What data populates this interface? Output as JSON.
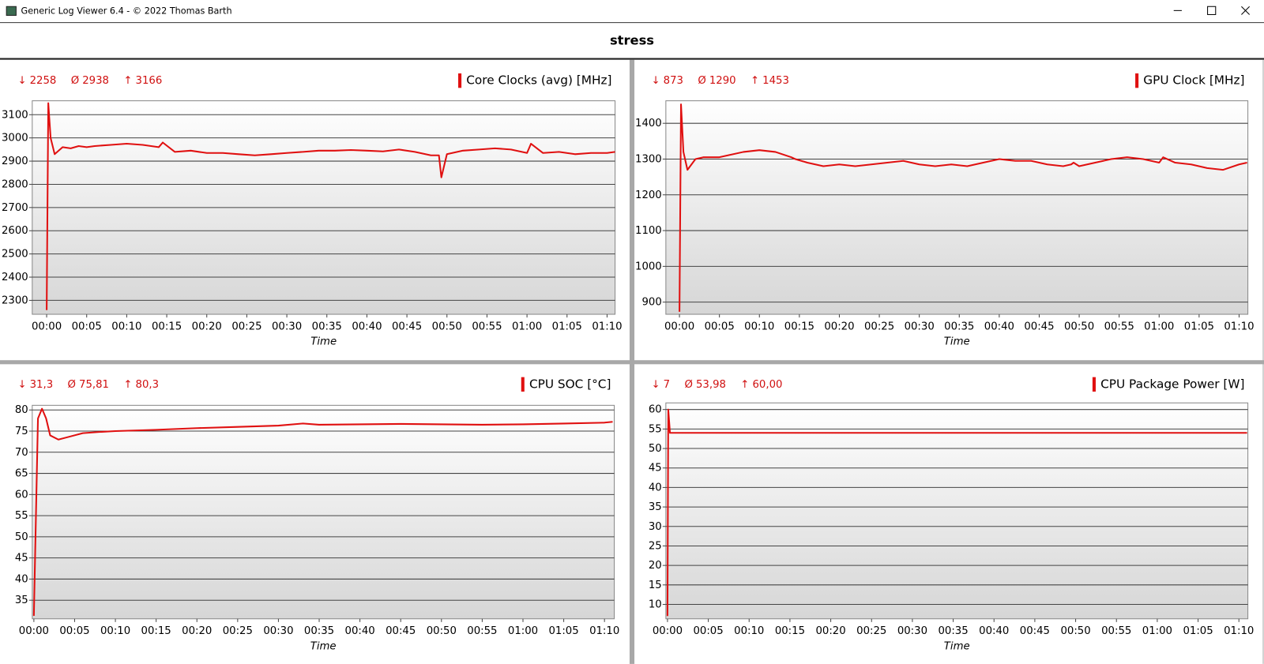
{
  "window": {
    "title": "Generic Log Viewer 6.4 - © 2022 Thomas Barth"
  },
  "header": {
    "title": "stress"
  },
  "chart_data": [
    {
      "type": "line",
      "title": "Core Clocks (avg) [MHz]",
      "color": "#e01010",
      "stats": [
        {
          "symbol": "↓",
          "value": 2258
        },
        {
          "symbol": "Ø",
          "value": 2938
        },
        {
          "symbol": "↑",
          "value": 3166
        }
      ],
      "xlabel": "Time",
      "x": [
        0,
        0.2,
        0.5,
        1,
        2,
        3,
        4,
        5,
        6,
        8,
        10,
        12,
        14,
        14.5,
        16,
        18,
        20,
        22,
        24,
        26,
        28,
        30,
        32,
        34,
        36,
        38,
        40,
        42,
        44,
        46,
        48,
        49,
        49.3,
        50,
        52,
        54,
        56,
        58,
        60,
        60.5,
        62,
        64,
        66,
        68,
        70,
        71
      ],
      "values": [
        2258,
        3150,
        3000,
        2930,
        2960,
        2955,
        2965,
        2960,
        2965,
        2970,
        2975,
        2970,
        2960,
        2980,
        2940,
        2945,
        2935,
        2935,
        2930,
        2925,
        2930,
        2935,
        2940,
        2945,
        2945,
        2948,
        2945,
        2942,
        2950,
        2940,
        2925,
        2925,
        2830,
        2930,
        2945,
        2950,
        2955,
        2950,
        2935,
        2975,
        2935,
        2940,
        2930,
        2935,
        2935,
        2940
      ],
      "xlim": [
        -1.8,
        71
      ],
      "ylim": [
        2240,
        3160
      ],
      "yticks": [
        2300,
        2400,
        2500,
        2600,
        2700,
        2800,
        2900,
        3000,
        3100
      ],
      "xticks": [
        {
          "value": 0,
          "label": "00:00"
        },
        {
          "value": 5,
          "label": "00:05"
        },
        {
          "value": 10,
          "label": "00:10"
        },
        {
          "value": 15,
          "label": "00:15"
        },
        {
          "value": 20,
          "label": "00:20"
        },
        {
          "value": 25,
          "label": "00:25"
        },
        {
          "value": 30,
          "label": "00:30"
        },
        {
          "value": 35,
          "label": "00:35"
        },
        {
          "value": 40,
          "label": "00:40"
        },
        {
          "value": 45,
          "label": "00:45"
        },
        {
          "value": 50,
          "label": "00:50"
        },
        {
          "value": 55,
          "label": "00:55"
        },
        {
          "value": 60,
          "label": "01:00"
        },
        {
          "value": 65,
          "label": "01:05"
        },
        {
          "value": 70,
          "label": "01:10"
        }
      ],
      "grid": true
    },
    {
      "type": "line",
      "title": "GPU Clock [MHz]",
      "color": "#e01010",
      "stats": [
        {
          "symbol": "↓",
          "value": 873
        },
        {
          "symbol": "Ø",
          "value": 1290
        },
        {
          "symbol": "↑",
          "value": 1453
        }
      ],
      "xlabel": "Time",
      "x": [
        0,
        0.2,
        0.5,
        1,
        2,
        3,
        4,
        5,
        6,
        8,
        10,
        12,
        14,
        14.5,
        16,
        18,
        20,
        22,
        24,
        26,
        28,
        30,
        32,
        34,
        36,
        38,
        40,
        42,
        44,
        46,
        48,
        49,
        49.3,
        50,
        52,
        54,
        56,
        58,
        60,
        60.5,
        62,
        64,
        66,
        68,
        70,
        71
      ],
      "values": [
        873,
        1453,
        1320,
        1270,
        1300,
        1305,
        1305,
        1305,
        1310,
        1320,
        1325,
        1320,
        1305,
        1300,
        1290,
        1280,
        1285,
        1280,
        1285,
        1290,
        1295,
        1285,
        1280,
        1285,
        1280,
        1290,
        1300,
        1295,
        1295,
        1285,
        1280,
        1285,
        1290,
        1280,
        1290,
        1300,
        1305,
        1300,
        1290,
        1305,
        1290,
        1285,
        1275,
        1270,
        1285,
        1290
      ],
      "xlim": [
        -1.7,
        71.1
      ],
      "ylim": [
        866,
        1463
      ],
      "yticks": [
        900,
        1000,
        1100,
        1200,
        1300,
        1400
      ],
      "xticks": [
        {
          "value": 0,
          "label": "00:00"
        },
        {
          "value": 5,
          "label": "00:05"
        },
        {
          "value": 10,
          "label": "00:10"
        },
        {
          "value": 15,
          "label": "00:15"
        },
        {
          "value": 20,
          "label": "00:20"
        },
        {
          "value": 25,
          "label": "00:25"
        },
        {
          "value": 30,
          "label": "00:30"
        },
        {
          "value": 35,
          "label": "00:35"
        },
        {
          "value": 40,
          "label": "00:40"
        },
        {
          "value": 45,
          "label": "00:45"
        },
        {
          "value": 50,
          "label": "00:50"
        },
        {
          "value": 55,
          "label": "00:55"
        },
        {
          "value": 60,
          "label": "01:00"
        },
        {
          "value": 65,
          "label": "01:05"
        },
        {
          "value": 70,
          "label": "01:10"
        }
      ],
      "grid": true
    },
    {
      "type": "line",
      "title": "CPU SOC [°C]",
      "color": "#e01010",
      "stats": [
        {
          "symbol": "↓",
          "value": 31.3,
          "label": "31,3"
        },
        {
          "symbol": "Ø",
          "value": 75.81,
          "label": "75,81"
        },
        {
          "symbol": "↑",
          "value": 80.3,
          "label": "80,3"
        }
      ],
      "xlabel": "Time",
      "x": [
        0,
        0.5,
        1,
        1.5,
        2,
        3,
        4,
        6,
        8,
        10,
        15,
        20,
        25,
        30,
        33,
        35,
        40,
        45,
        50,
        55,
        60,
        65,
        70,
        71
      ],
      "values": [
        31.3,
        78,
        80.3,
        78,
        74,
        73,
        73.5,
        74.5,
        74.8,
        75,
        75.3,
        75.7,
        76,
        76.3,
        76.8,
        76.5,
        76.6,
        76.7,
        76.6,
        76.5,
        76.6,
        76.8,
        77.0,
        77.2
      ],
      "xlim": [
        -0.2,
        71.2
      ],
      "ylim": [
        30.6,
        81.1
      ],
      "yticks": [
        35,
        40,
        45,
        50,
        55,
        60,
        65,
        70,
        75,
        80
      ],
      "xticks": [
        {
          "value": 0,
          "label": "00:00"
        },
        {
          "value": 5,
          "label": "00:05"
        },
        {
          "value": 10,
          "label": "00:10"
        },
        {
          "value": 15,
          "label": "00:15"
        },
        {
          "value": 20,
          "label": "00:20"
        },
        {
          "value": 25,
          "label": "00:25"
        },
        {
          "value": 30,
          "label": "00:30"
        },
        {
          "value": 35,
          "label": "00:35"
        },
        {
          "value": 40,
          "label": "00:40"
        },
        {
          "value": 45,
          "label": "00:45"
        },
        {
          "value": 50,
          "label": "00:50"
        },
        {
          "value": 55,
          "label": "00:55"
        },
        {
          "value": 60,
          "label": "01:00"
        },
        {
          "value": 65,
          "label": "01:05"
        },
        {
          "value": 70,
          "label": "01:10"
        }
      ],
      "grid": true
    },
    {
      "type": "line",
      "title": "CPU Package Power [W]",
      "color": "#e01010",
      "stats": [
        {
          "symbol": "↓",
          "value": 7
        },
        {
          "symbol": "Ø",
          "value": 53.98,
          "label": "53,98"
        },
        {
          "symbol": "↑",
          "value": 60,
          "label": "60,00"
        }
      ],
      "xlabel": "Time",
      "x": [
        0,
        0.1,
        0.3,
        71
      ],
      "values": [
        7,
        60,
        54,
        54
      ],
      "xlim": [
        -0.2,
        71.1
      ],
      "ylim": [
        6.3,
        61.7
      ],
      "yticks": [
        10,
        15,
        20,
        25,
        30,
        35,
        40,
        45,
        50,
        55,
        60
      ],
      "xticks": [
        {
          "value": 0,
          "label": "00:00"
        },
        {
          "value": 5,
          "label": "00:05"
        },
        {
          "value": 10,
          "label": "00:10"
        },
        {
          "value": 15,
          "label": "00:15"
        },
        {
          "value": 20,
          "label": "00:20"
        },
        {
          "value": 25,
          "label": "00:25"
        },
        {
          "value": 30,
          "label": "00:30"
        },
        {
          "value": 35,
          "label": "00:35"
        },
        {
          "value": 40,
          "label": "00:40"
        },
        {
          "value": 45,
          "label": "00:45"
        },
        {
          "value": 50,
          "label": "00:50"
        },
        {
          "value": 55,
          "label": "00:55"
        },
        {
          "value": 60,
          "label": "01:00"
        },
        {
          "value": 65,
          "label": "01:05"
        },
        {
          "value": 70,
          "label": "01:10"
        }
      ],
      "grid": true
    }
  ]
}
